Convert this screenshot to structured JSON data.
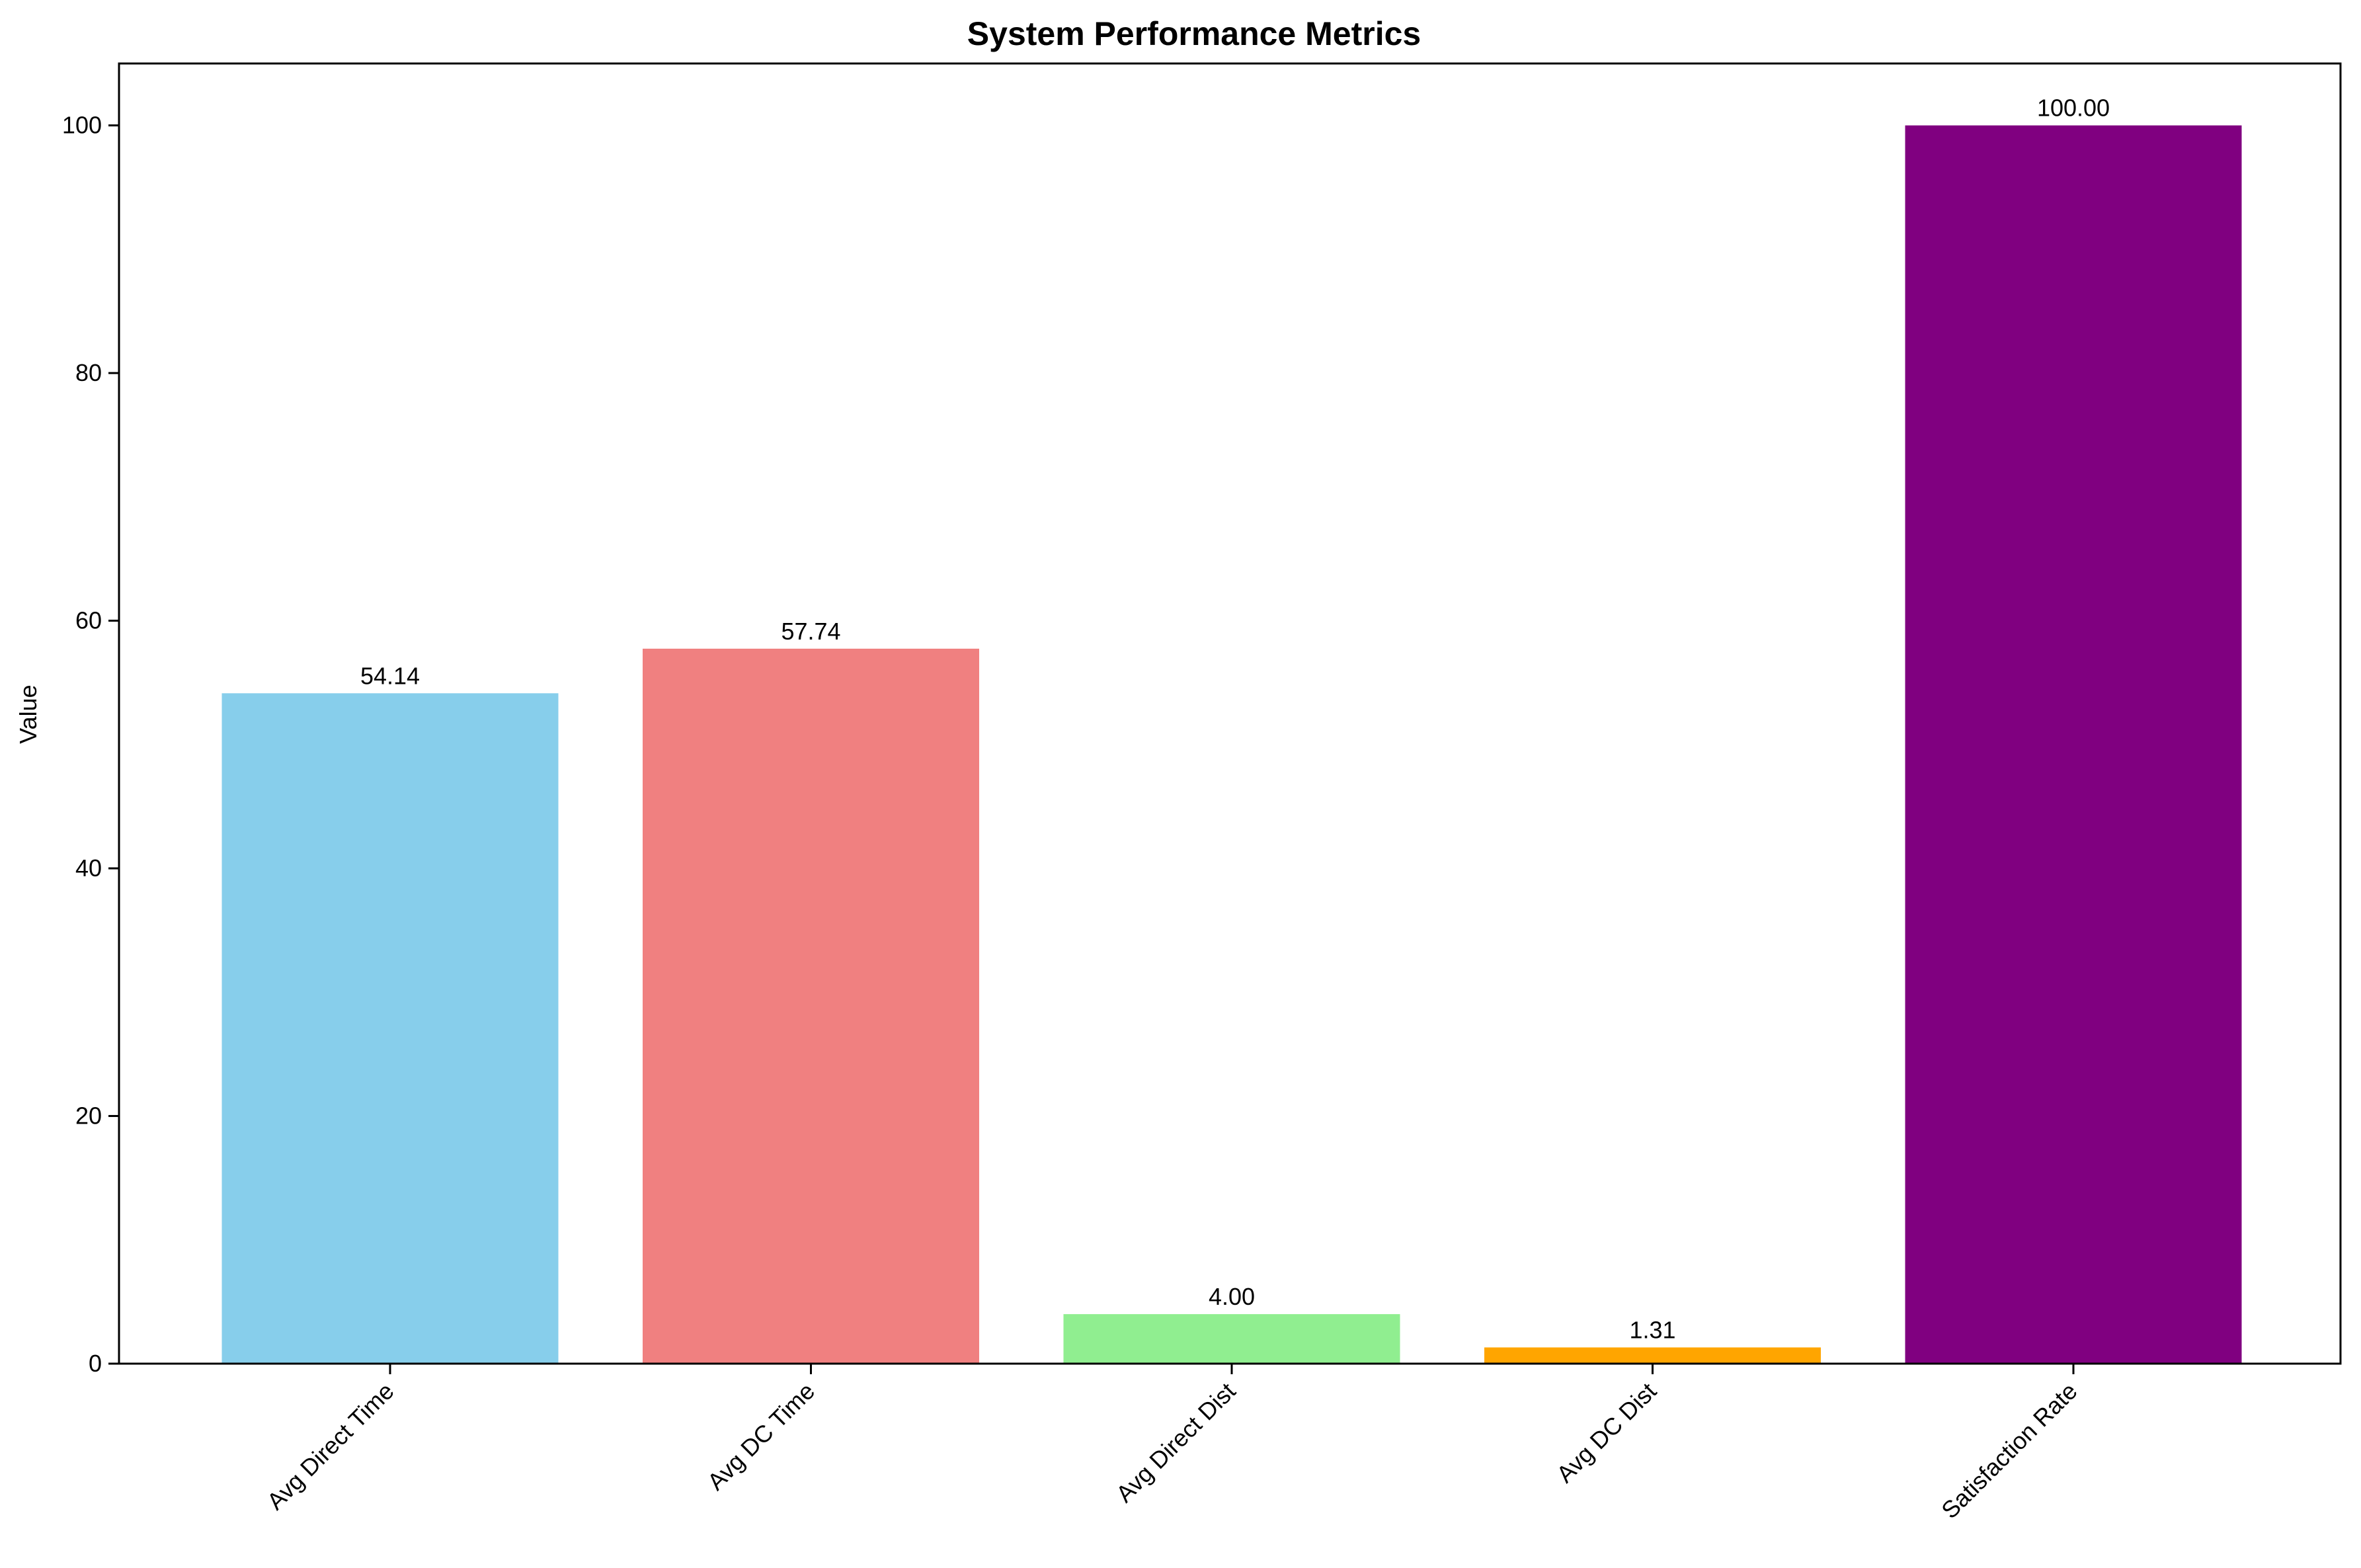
{
  "chart_data": {
    "type": "bar",
    "title": "System Performance Metrics",
    "xlabel": "",
    "ylabel": "Value",
    "categories": [
      "Avg Direct Time",
      "Avg DC Time",
      "Avg Direct Dist",
      "Avg DC Dist",
      "Satisfaction Rate"
    ],
    "values": [
      54.14,
      57.74,
      4.0,
      1.31,
      100.0
    ],
    "value_labels": [
      "54.14",
      "57.74",
      "4.00",
      "1.31",
      "100.00"
    ],
    "colors": [
      "#87ceeb",
      "#f08080",
      "#90ee90",
      "#ffa500",
      "#800080"
    ],
    "ylim": [
      0,
      105
    ],
    "yticks": [
      0,
      20,
      40,
      60,
      80,
      100
    ],
    "ytick_labels": [
      "0",
      "20",
      "40",
      "60",
      "80",
      "100"
    ],
    "grid": false,
    "legend": "none"
  }
}
